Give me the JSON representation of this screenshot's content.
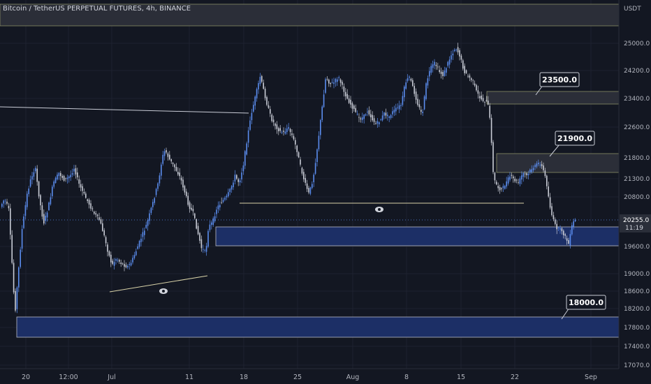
{
  "chart_data": {
    "type": "candlestick",
    "title": "Bitcoin / TetherUS PERPETUAL FUTURES, 4h, BINANCE",
    "currency": "USDT",
    "y_ticks": [
      "25000.0",
      "24200.0",
      "23400.0",
      "22600.0",
      "21800.0",
      "21300.0",
      "20800.0",
      "19600.0",
      "19000.0",
      "18600.0",
      "18200.0",
      "17800.0",
      "17400.0",
      "17070.0"
    ],
    "x_ticks": [
      "20",
      "12:00",
      "Jul",
      "11",
      "18",
      "25",
      "Aug",
      "8",
      "15",
      "22",
      "Sep"
    ],
    "last_price": "20255.0",
    "countdown": "11:19",
    "zone_labels": [
      "23500.0",
      "21900.0",
      "18000.0"
    ],
    "colors": {
      "background": "#131722",
      "up": "#5b8def",
      "down": "#c9ccd6",
      "grid": "#1e2230",
      "zone_blue": "#1c2f66",
      "zone_grey": "#2b2e38"
    },
    "grid": true,
    "legend": "none"
  }
}
